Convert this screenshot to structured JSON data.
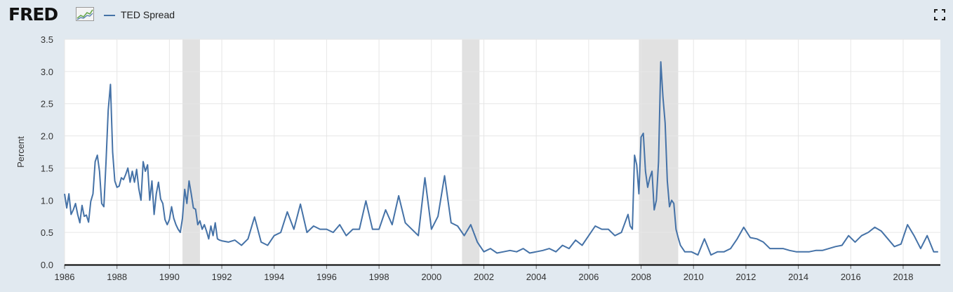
{
  "header": {
    "logo_text": "FRED",
    "logo_mark": "chart-mark-icon",
    "expand_icon": "fullscreen-icon"
  },
  "chart_data": {
    "type": "line",
    "title": "",
    "xlabel": "",
    "ylabel": "Percent",
    "xlim": [
      1986.0,
      2019.42
    ],
    "ylim": [
      0,
      3.5
    ],
    "y_ticks": [
      "0.0",
      "0.5",
      "1.0",
      "1.5",
      "2.0",
      "2.5",
      "3.0",
      "3.5"
    ],
    "x_ticks": [
      "1986",
      "1988",
      "1990",
      "1992",
      "1994",
      "1996",
      "1998",
      "2000",
      "2002",
      "2004",
      "2006",
      "2008",
      "2010",
      "2012",
      "2014",
      "2016",
      "2018"
    ],
    "grid": true,
    "legend_position": "top-left",
    "line_color": "#4572a7",
    "recession_shading_color": "#e1e1e1",
    "recessions": [
      [
        "1990-07",
        "1991-03"
      ],
      [
        "2001-03",
        "2001-11"
      ],
      [
        "2007-12",
        "2009-06"
      ]
    ],
    "series": [
      {
        "name": "TED Spread",
        "x": [
          "1986-01",
          "1986-02",
          "1986-03",
          "1986-04",
          "1986-05",
          "1986-06",
          "1986-07",
          "1986-08",
          "1986-09",
          "1986-10",
          "1986-11",
          "1986-12",
          "1987-01",
          "1987-02",
          "1987-03",
          "1987-04",
          "1987-05",
          "1987-06",
          "1987-07",
          "1987-08",
          "1987-09",
          "1987-10",
          "1987-11",
          "1987-12",
          "1988-01",
          "1988-02",
          "1988-03",
          "1988-04",
          "1988-05",
          "1988-06",
          "1988-07",
          "1988-08",
          "1988-09",
          "1988-10",
          "1988-11",
          "1988-12",
          "1989-01",
          "1989-02",
          "1989-03",
          "1989-04",
          "1989-05",
          "1989-06",
          "1989-07",
          "1989-08",
          "1989-09",
          "1989-10",
          "1989-11",
          "1989-12",
          "1990-01",
          "1990-02",
          "1990-03",
          "1990-04",
          "1990-05",
          "1990-06",
          "1990-07",
          "1990-08",
          "1990-09",
          "1990-10",
          "1990-11",
          "1990-12",
          "1991-01",
          "1991-02",
          "1991-03",
          "1991-04",
          "1991-05",
          "1991-06",
          "1991-07",
          "1991-08",
          "1991-09",
          "1991-10",
          "1991-11",
          "1991-12",
          "1992-01",
          "1992-04",
          "1992-07",
          "1992-10",
          "1993-01",
          "1993-04",
          "1993-07",
          "1993-10",
          "1994-01",
          "1994-04",
          "1994-07",
          "1994-10",
          "1995-01",
          "1995-04",
          "1995-07",
          "1995-10",
          "1996-01",
          "1996-04",
          "1996-07",
          "1996-10",
          "1997-01",
          "1997-04",
          "1997-07",
          "1997-10",
          "1998-01",
          "1998-04",
          "1998-07",
          "1998-10",
          "1999-01",
          "1999-04",
          "1999-07",
          "1999-10",
          "2000-01",
          "2000-04",
          "2000-07",
          "2000-10",
          "2001-01",
          "2001-04",
          "2001-07",
          "2001-10",
          "2002-01",
          "2002-04",
          "2002-07",
          "2002-10",
          "2003-01",
          "2003-04",
          "2003-07",
          "2003-10",
          "2004-01",
          "2004-04",
          "2004-07",
          "2004-10",
          "2005-01",
          "2005-04",
          "2005-07",
          "2005-10",
          "2006-01",
          "2006-04",
          "2006-07",
          "2006-10",
          "2007-01",
          "2007-04",
          "2007-07",
          "2007-08",
          "2007-09",
          "2007-10",
          "2007-11",
          "2007-12",
          "2008-01",
          "2008-02",
          "2008-03",
          "2008-04",
          "2008-05",
          "2008-06",
          "2008-07",
          "2008-08",
          "2008-09",
          "2008-10",
          "2008-11",
          "2008-12",
          "2009-01",
          "2009-02",
          "2009-03",
          "2009-04",
          "2009-05",
          "2009-06",
          "2009-07",
          "2009-08",
          "2009-09",
          "2009-12",
          "2010-03",
          "2010-06",
          "2010-09",
          "2010-12",
          "2011-03",
          "2011-06",
          "2011-09",
          "2011-12",
          "2012-03",
          "2012-06",
          "2012-09",
          "2012-12",
          "2013-03",
          "2013-06",
          "2013-09",
          "2013-12",
          "2014-03",
          "2014-06",
          "2014-09",
          "2014-12",
          "2015-03",
          "2015-06",
          "2015-09",
          "2015-12",
          "2016-03",
          "2016-06",
          "2016-09",
          "2016-12",
          "2017-03",
          "2017-06",
          "2017-09",
          "2017-12",
          "2018-03",
          "2018-06",
          "2018-09",
          "2018-12",
          "2019-03",
          "2019-05"
        ],
        "values": [
          1.1,
          0.88,
          1.1,
          0.78,
          0.85,
          0.95,
          0.78,
          0.65,
          0.92,
          0.75,
          0.77,
          0.66,
          0.98,
          1.1,
          1.6,
          1.7,
          1.45,
          0.95,
          0.9,
          1.6,
          2.4,
          2.8,
          1.75,
          1.3,
          1.2,
          1.22,
          1.35,
          1.32,
          1.4,
          1.5,
          1.28,
          1.45,
          1.28,
          1.48,
          1.18,
          1.0,
          1.6,
          1.45,
          1.55,
          1.0,
          1.3,
          0.78,
          1.1,
          1.28,
          1.02,
          0.95,
          0.7,
          0.62,
          0.7,
          0.9,
          0.72,
          0.62,
          0.55,
          0.5,
          0.72,
          1.17,
          0.95,
          1.3,
          1.1,
          0.88,
          0.86,
          0.62,
          0.68,
          0.55,
          0.62,
          0.52,
          0.4,
          0.6,
          0.45,
          0.65,
          0.4,
          0.38,
          0.37,
          0.35,
          0.38,
          0.3,
          0.4,
          0.74,
          0.35,
          0.3,
          0.45,
          0.5,
          0.82,
          0.55,
          0.94,
          0.5,
          0.6,
          0.55,
          0.55,
          0.5,
          0.62,
          0.45,
          0.55,
          0.55,
          0.99,
          0.55,
          0.55,
          0.85,
          0.62,
          1.07,
          0.65,
          0.55,
          0.45,
          1.35,
          0.55,
          0.75,
          1.38,
          0.65,
          0.6,
          0.45,
          0.62,
          0.35,
          0.2,
          0.25,
          0.18,
          0.2,
          0.22,
          0.2,
          0.25,
          0.18,
          0.2,
          0.22,
          0.25,
          0.2,
          0.3,
          0.25,
          0.38,
          0.3,
          0.45,
          0.6,
          0.55,
          0.55,
          0.45,
          0.5,
          0.78,
          0.6,
          0.55,
          1.7,
          1.55,
          1.1,
          1.98,
          2.04,
          1.45,
          1.2,
          1.35,
          1.45,
          0.85,
          1.0,
          1.6,
          3.15,
          2.6,
          2.2,
          1.3,
          0.9,
          1.0,
          0.95,
          0.55,
          0.42,
          0.3,
          0.25,
          0.2,
          0.2,
          0.15,
          0.4,
          0.15,
          0.2,
          0.2,
          0.25,
          0.4,
          0.58,
          0.42,
          0.4,
          0.35,
          0.25,
          0.25,
          0.25,
          0.22,
          0.2,
          0.2,
          0.2,
          0.22,
          0.22,
          0.25,
          0.28,
          0.3,
          0.45,
          0.35,
          0.45,
          0.5,
          0.58,
          0.52,
          0.4,
          0.28,
          0.32,
          0.62,
          0.45,
          0.25,
          0.45,
          0.2,
          0.2
        ]
      }
    ]
  }
}
